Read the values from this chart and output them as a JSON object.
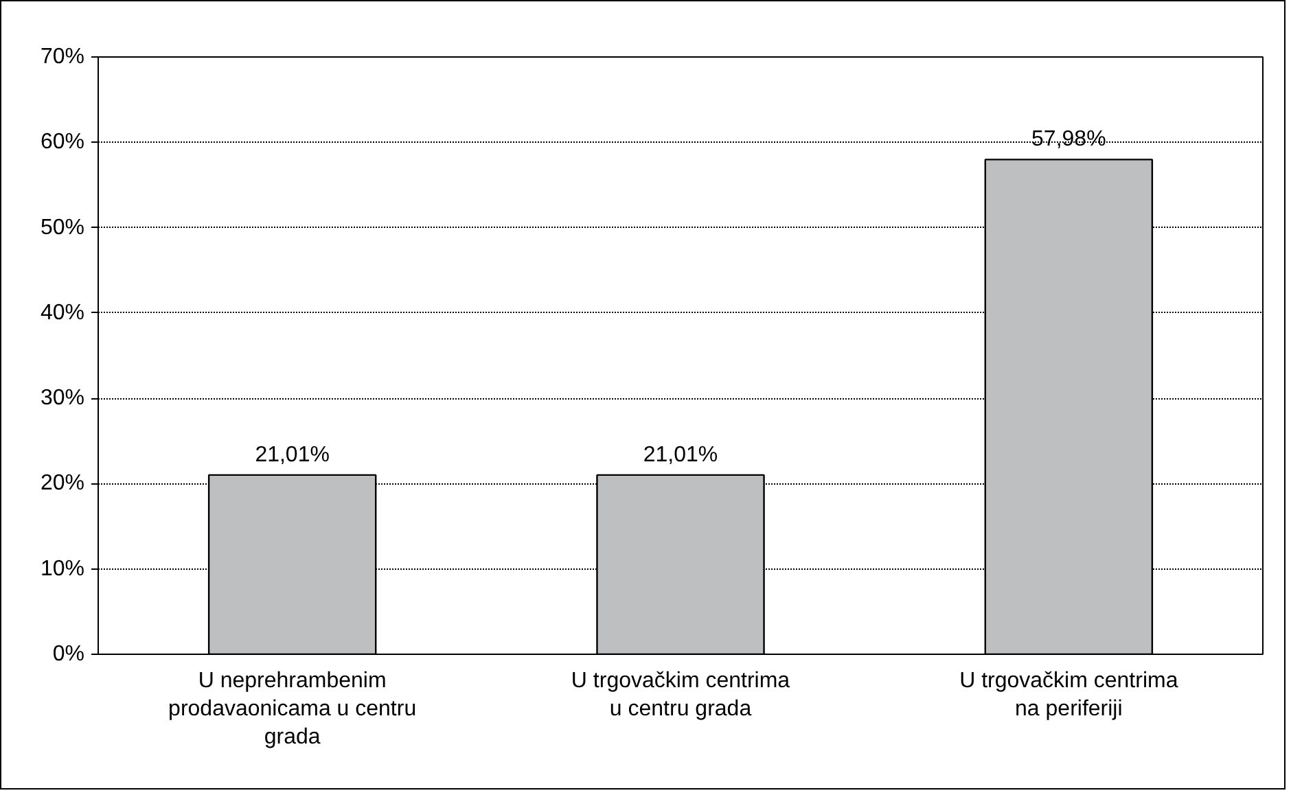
{
  "chart_data": {
    "type": "bar",
    "categories": [
      "U neprehrambenim\nprodavaonicama u centru\ngrada",
      "U trgovačkim centrima\nu centru grada",
      "U trgovačkim centrima\nna periferiji"
    ],
    "values": [
      21.01,
      21.01,
      57.98
    ],
    "value_labels": [
      "21,01%",
      "21,01%",
      "57,98%"
    ],
    "color": "#bebfc1",
    "ylim": [
      0,
      70
    ],
    "yticks": [
      {
        "value": 0,
        "label": "0%"
      },
      {
        "value": 10,
        "label": "10%"
      },
      {
        "value": 20,
        "label": "20%"
      },
      {
        "value": 30,
        "label": "30%"
      },
      {
        "value": 40,
        "label": "40%"
      },
      {
        "value": 50,
        "label": "50%"
      },
      {
        "value": 60,
        "label": "60%"
      },
      {
        "value": 70,
        "label": "70%"
      }
    ],
    "grid": "y"
  }
}
